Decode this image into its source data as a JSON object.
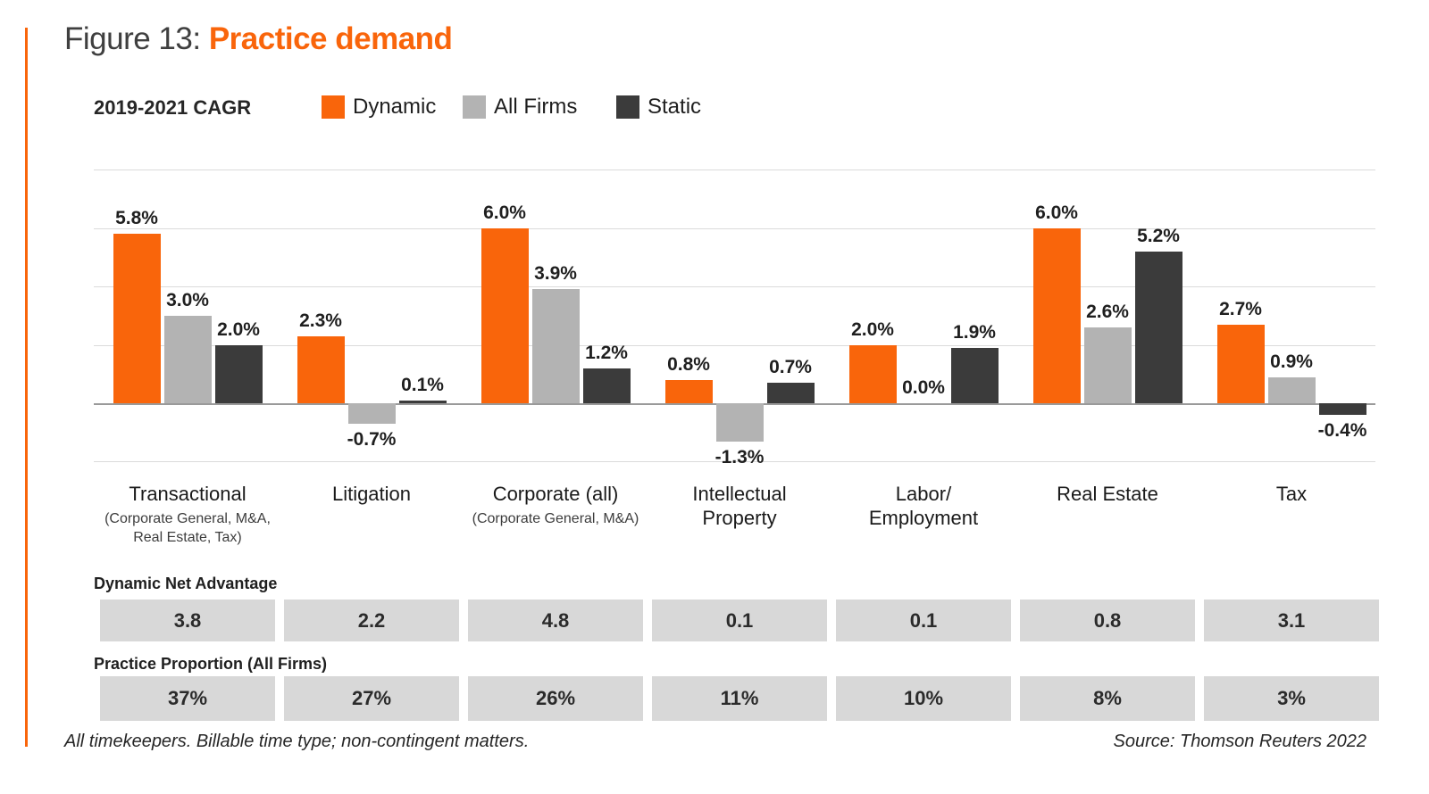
{
  "page": {
    "title_prefix": "Figure 13: ",
    "title_highlight": "Practice demand",
    "footer_left": "All timekeepers. Billable time type; non-contingent matters.",
    "footer_right": "Source: Thomson Reuters 2022"
  },
  "colors": {
    "orange": "#F9650B",
    "gray": "#B3B3B3",
    "dark": "#3B3B3B",
    "cell_bg": "#D8D8D8",
    "grid": "#DBDBDB",
    "axis": "#9A9A9A"
  },
  "legend": {
    "label": "2019-2021 CAGR"
  },
  "chart_data": {
    "type": "bar",
    "title": "2019-2021 CAGR",
    "xlabel": "",
    "ylabel": "",
    "ylim": [
      -2,
      8
    ],
    "gridlines": [
      8,
      6,
      4,
      2,
      0,
      -2
    ],
    "grid": true,
    "legend_position": "top",
    "value_suffix": "%",
    "categories": [
      {
        "label": "Transactional",
        "sublabel": "(Corporate General, M&A,\nReal Estate, Tax)"
      },
      {
        "label": "Litigation",
        "sublabel": ""
      },
      {
        "label": "Corporate (all)",
        "sublabel": "(Corporate General, M&A)"
      },
      {
        "label": "Intellectual\nProperty",
        "sublabel": ""
      },
      {
        "label": "Labor/\nEmployment",
        "sublabel": ""
      },
      {
        "label": "Real Estate",
        "sublabel": ""
      },
      {
        "label": "Tax",
        "sublabel": ""
      }
    ],
    "series": [
      {
        "name": "Dynamic",
        "color": "#F9650B",
        "values": [
          5.8,
          2.3,
          6.0,
          0.8,
          2.0,
          6.0,
          2.7
        ]
      },
      {
        "name": "All Firms",
        "color": "#B3B3B3",
        "values": [
          3.0,
          -0.7,
          3.9,
          -1.3,
          0.0,
          2.6,
          0.9
        ]
      },
      {
        "name": "Static",
        "color": "#3B3B3B",
        "values": [
          2.0,
          0.1,
          1.2,
          0.7,
          1.9,
          5.2,
          -0.4
        ]
      }
    ]
  },
  "table": {
    "rows": [
      {
        "label": "Dynamic Net Advantage",
        "values": [
          "3.8",
          "2.2",
          "4.8",
          "0.1",
          "0.1",
          "0.8",
          "3.1"
        ]
      },
      {
        "label": "Practice Proportion (All Firms)",
        "values": [
          "37%",
          "27%",
          "26%",
          "11%",
          "10%",
          "8%",
          "3%"
        ]
      }
    ]
  }
}
